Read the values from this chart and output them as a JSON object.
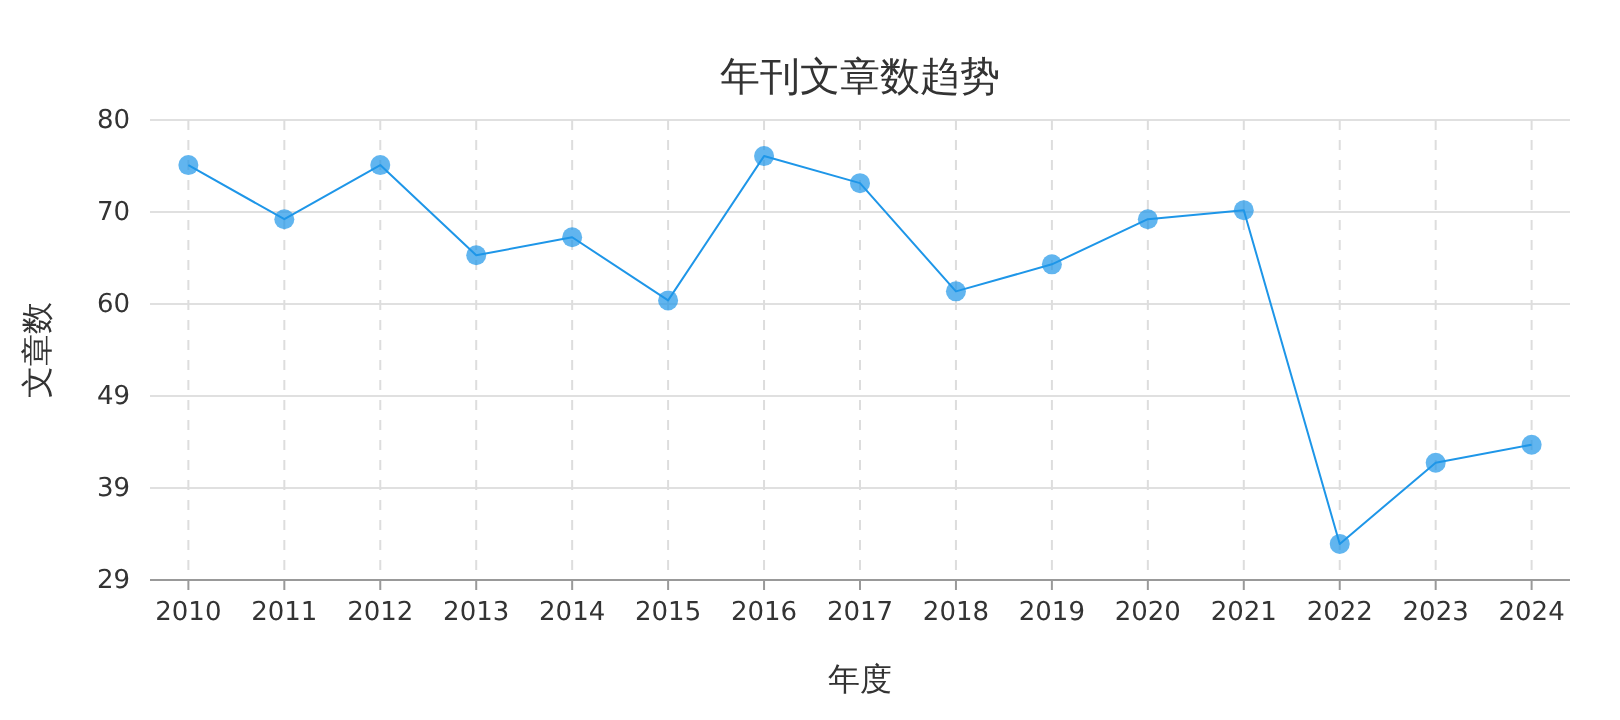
{
  "chart_data": {
    "type": "line",
    "title": "年刊文章数趋势",
    "xlabel": "年度",
    "ylabel": "文章数",
    "categories": [
      "2010",
      "2011",
      "2012",
      "2013",
      "2014",
      "2015",
      "2016",
      "2017",
      "2018",
      "2019",
      "2020",
      "2021",
      "2022",
      "2023",
      "2024"
    ],
    "series": [
      {
        "color": "#1e96e8",
        "values": [
          75,
          69,
          75,
          65,
          67,
          60,
          76,
          73,
          61,
          64,
          69,
          70,
          33,
          42,
          44
        ]
      }
    ],
    "ylim": [
      29,
      80
    ],
    "yticks": [
      29,
      {
        "value": 39.2,
        "label": "39"
      },
      {
        "value": 49.4,
        "label": "49"
      },
      {
        "value": 59.6,
        "label": "60"
      },
      {
        "value": 69.8,
        "label": "70"
      },
      80
    ],
    "grid": true,
    "marker": "circle",
    "line_style": "solid"
  }
}
